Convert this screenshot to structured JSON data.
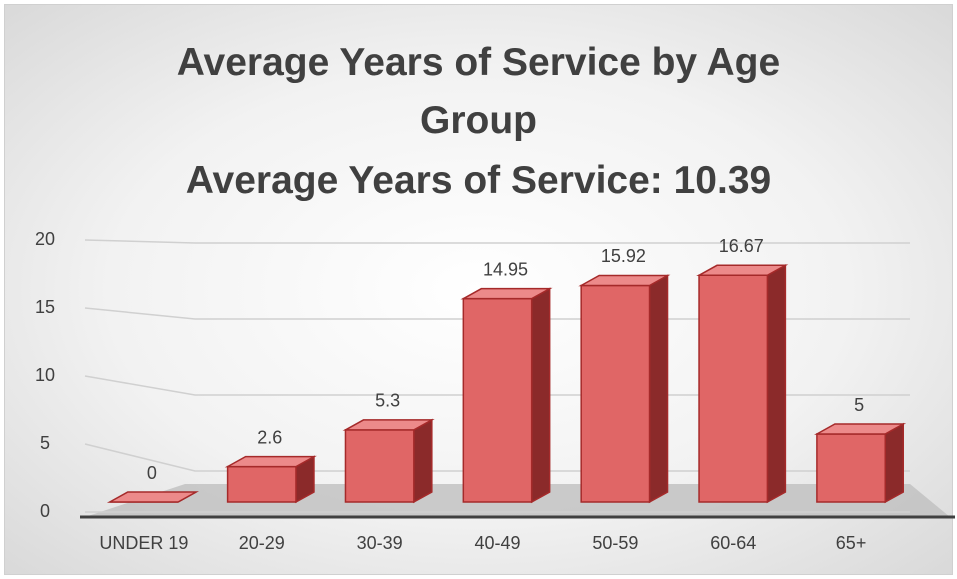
{
  "chart_data": {
    "type": "bar3d",
    "title": "Average Years of Service by Age Group",
    "subtitle": "Average Years of Service: 10.39",
    "categories": [
      "UNDER 19",
      "20-29",
      "30-39",
      "40-49",
      "50-59",
      "60-64",
      "65+"
    ],
    "values": [
      0,
      2.6,
      5.3,
      14.95,
      15.92,
      16.67,
      5
    ],
    "color": "#e06666",
    "ylim": [
      0,
      20
    ],
    "yticks": [
      0,
      5,
      10,
      15,
      20
    ],
    "grid": true
  }
}
